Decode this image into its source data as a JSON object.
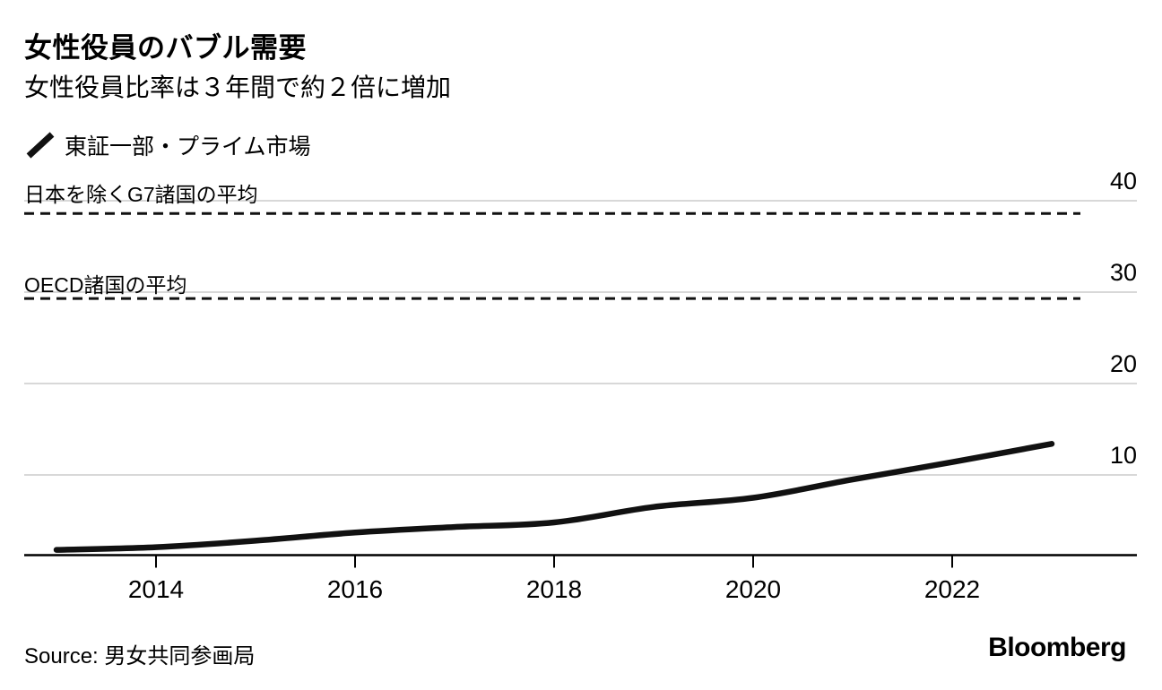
{
  "header": {
    "title": "女性役員のバブル需要",
    "subtitle": "女性役員比率は３年間で約２倍に増加"
  },
  "legend": {
    "label": "東証一部・プライム市場"
  },
  "chart_data": {
    "type": "line",
    "x": [
      2013,
      2014,
      2015,
      2016,
      2017,
      2018,
      2019,
      2020,
      2021,
      2022,
      2023
    ],
    "series": [
      {
        "name": "東証一部・プライム市場",
        "values": [
          1.8,
          2.1,
          2.8,
          3.7,
          4.3,
          4.8,
          6.5,
          7.5,
          9.5,
          11.4,
          13.4
        ],
        "color": "#111111"
      }
    ],
    "reference_lines": [
      {
        "label": "日本を除くG7諸国の平均",
        "value": 38.6,
        "style": "dashed"
      },
      {
        "label": "OECD諸国の平均",
        "value": 29.3,
        "style": "dashed"
      }
    ],
    "yticks": [
      10,
      20,
      30,
      40
    ],
    "xticks": [
      2014,
      2016,
      2018,
      2020,
      2022
    ],
    "ylim": [
      1.2,
      43
    ],
    "xlim": [
      2013,
      2023.9
    ],
    "grid": "horizontal",
    "ytick_side": "right",
    "legend_position": "top-left"
  },
  "footer": {
    "source_label": "Source: 男女共同参画局",
    "brand": "Bloomberg"
  },
  "colors": {
    "line": "#111111",
    "grid": "#d8d8d8",
    "axis": "#000000",
    "reference": "#111111",
    "text": "#000000",
    "background": "#ffffff"
  }
}
